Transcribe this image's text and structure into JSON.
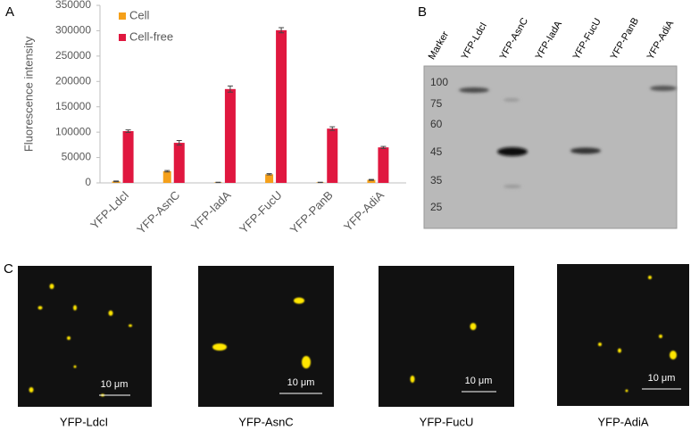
{
  "panel_labels": [
    "A",
    "B",
    "C"
  ],
  "chart_data": {
    "type": "bar",
    "ylabel": "Fluorescence intensity",
    "categories": [
      "YFP-LdcI",
      "YFP-AsnC",
      "YFP-IadA",
      "YFP-FucU",
      "YFP-PanB",
      "YFP-AdiA"
    ],
    "series": [
      {
        "name": "Cell",
        "color": "#f5a01a",
        "values": [
          3000,
          23000,
          1000,
          17000,
          1000,
          6000
        ],
        "errors": [
          700,
          1500,
          300,
          1200,
          300,
          900
        ]
      },
      {
        "name": "Cell-free",
        "color": "#e0173f",
        "values": [
          102000,
          79000,
          185000,
          301000,
          107000,
          70000
        ],
        "errors": [
          2500,
          4500,
          6000,
          5000,
          3500,
          2000
        ]
      }
    ],
    "ylim": [
      0,
      350000
    ],
    "yticks": [
      0,
      50000,
      100000,
      150000,
      200000,
      250000,
      300000,
      350000
    ],
    "legend": "top-left"
  },
  "blot": {
    "lanes": [
      "Marker",
      "YFP-LdcI",
      "YFP-AsnC",
      "YFP-IadA",
      "YFP-FucU",
      "YFP-PanB",
      "YFP-AdiA"
    ],
    "markers": [
      100,
      75,
      60,
      45,
      35,
      25
    ]
  },
  "microscopy": {
    "captions": [
      "YFP-LdcI",
      "YFP-AsnC",
      "YFP-FucU",
      "YFP-AdiA"
    ],
    "scale_bar": "10 μm"
  }
}
